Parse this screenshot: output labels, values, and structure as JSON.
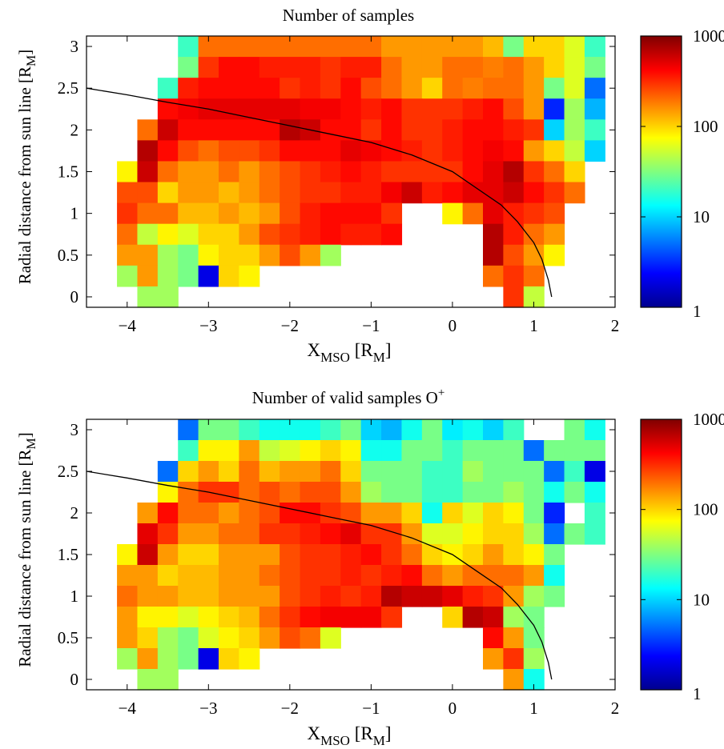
{
  "figure": {
    "panels": [
      {
        "title": "Number of samples"
      },
      {
        "title_main": "Number of valid samples O",
        "title_sup": "+"
      }
    ],
    "xlabel": {
      "main": "X",
      "sub": "MSO",
      "rest": " [R",
      "rest_sub": "M",
      "close": "]"
    },
    "ylabel": {
      "main": "Radial distance from sun line [R",
      "sub": "M",
      "close": "]"
    },
    "colorbar_ticks": [
      "1",
      "10",
      "100",
      "1000"
    ],
    "x_tick_labels": [
      "−4",
      "−3",
      "−2",
      "−1",
      "0",
      "1",
      "2"
    ],
    "y_tick_labels": [
      "0",
      "0.5",
      "1",
      "1.5",
      "2",
      "2.5",
      "3"
    ]
  },
  "chart_data": [
    {
      "type": "heatmap",
      "title": "Number of samples",
      "xlabel": "X_MSO [R_M]",
      "ylabel": "Radial distance from sun line [R_M]",
      "xlim": [
        -4.5,
        2
      ],
      "ylim": [
        -0.125,
        3.125
      ],
      "x_ticks": [
        -4,
        -3,
        -2,
        -1,
        0,
        1,
        2
      ],
      "y_ticks": [
        0,
        0.5,
        1,
        1.5,
        2,
        2.5,
        3
      ],
      "bin_width": 0.25,
      "bin_height": 0.25,
      "x_bin_start": -4,
      "y_bin_start": 0,
      "color_scale": "log",
      "colormap": "jet",
      "clim": [
        1,
        1000
      ],
      "colorbar_ticks": [
        1,
        10,
        100,
        1000
      ],
      "cells": [
        {
          "y": 3.0,
          "row": [
            null,
            null,
            null,
            20,
            200,
            200,
            200,
            200,
            200,
            200,
            200,
            200,
            200,
            150,
            150,
            150,
            150,
            150,
            120,
            30,
            100,
            100,
            60,
            20
          ]
        },
        {
          "y": 2.75,
          "row": [
            null,
            null,
            null,
            30,
            300,
            400,
            400,
            350,
            350,
            350,
            300,
            350,
            350,
            200,
            150,
            150,
            200,
            200,
            180,
            200,
            150,
            100,
            60,
            30
          ]
        },
        {
          "y": 2.5,
          "row": [
            null,
            null,
            20,
            350,
            400,
            400,
            400,
            400,
            300,
            350,
            300,
            400,
            250,
            200,
            150,
            100,
            200,
            180,
            200,
            200,
            150,
            30,
            60,
            5
          ]
        },
        {
          "y": 2.25,
          "row": [
            null,
            null,
            400,
            450,
            500,
            500,
            500,
            500,
            500,
            450,
            450,
            400,
            350,
            400,
            300,
            300,
            300,
            350,
            400,
            250,
            150,
            3,
            40,
            8
          ]
        },
        {
          "y": 2.0,
          "row": [
            null,
            200,
            600,
            400,
            400,
            400,
            400,
            400,
            700,
            600,
            400,
            400,
            300,
            400,
            300,
            300,
            350,
            400,
            400,
            350,
            300,
            10,
            40,
            20
          ]
        },
        {
          "y": 1.75,
          "row": [
            null,
            700,
            400,
            250,
            200,
            250,
            250,
            300,
            400,
            400,
            400,
            500,
            450,
            400,
            350,
            300,
            350,
            400,
            450,
            400,
            150,
            100,
            50,
            10
          ]
        },
        {
          "y": 1.5,
          "row": [
            80,
            600,
            200,
            150,
            150,
            200,
            150,
            200,
            250,
            300,
            350,
            400,
            350,
            300,
            300,
            300,
            300,
            400,
            500,
            700,
            300,
            200,
            100,
            null
          ]
        },
        {
          "y": 1.25,
          "row": [
            250,
            250,
            100,
            150,
            150,
            120,
            150,
            200,
            250,
            300,
            300,
            350,
            350,
            450,
            600,
            350,
            400,
            500,
            500,
            600,
            400,
            300,
            200,
            null
          ]
        },
        {
          "y": 1.0,
          "row": [
            300,
            200,
            200,
            120,
            120,
            150,
            120,
            150,
            250,
            350,
            400,
            400,
            400,
            300,
            null,
            null,
            80,
            200,
            500,
            350,
            300,
            250,
            null,
            null
          ]
        },
        {
          "y": 0.75,
          "row": [
            200,
            50,
            80,
            60,
            100,
            100,
            150,
            250,
            300,
            350,
            400,
            350,
            350,
            400,
            null,
            null,
            null,
            null,
            700,
            350,
            200,
            150,
            null,
            null
          ]
        },
        {
          "y": 0.5,
          "row": [
            150,
            150,
            40,
            30,
            80,
            100,
            100,
            150,
            250,
            150,
            40,
            null,
            null,
            null,
            null,
            null,
            null,
            null,
            700,
            250,
            150,
            80,
            null,
            null
          ]
        },
        {
          "y": 0.25,
          "row": [
            40,
            150,
            40,
            30,
            2,
            100,
            80,
            null,
            null,
            null,
            null,
            null,
            null,
            null,
            null,
            null,
            null,
            null,
            200,
            300,
            200,
            null,
            null,
            null
          ]
        },
        {
          "y": 0.0,
          "row": [
            null,
            40,
            40,
            null,
            null,
            null,
            null,
            null,
            null,
            null,
            null,
            null,
            null,
            null,
            null,
            null,
            null,
            null,
            null,
            300,
            50,
            null,
            null,
            null
          ]
        }
      ],
      "overlay_curve": {
        "name": "",
        "x": [
          -4.5,
          -4.0,
          -3.5,
          -3.0,
          -2.5,
          -2.0,
          -1.5,
          -1.0,
          -0.5,
          0.0,
          0.3,
          0.6,
          0.8,
          1.0,
          1.1,
          1.18,
          1.22
        ],
        "y": [
          2.5,
          2.42,
          2.33,
          2.25,
          2.15,
          2.05,
          1.95,
          1.85,
          1.7,
          1.5,
          1.3,
          1.1,
          0.9,
          0.65,
          0.45,
          0.2,
          0.0
        ]
      }
    },
    {
      "type": "heatmap",
      "title": "Number of valid samples O+",
      "xlabel": "X_MSO [R_M]",
      "ylabel": "Radial distance from sun line [R_M]",
      "xlim": [
        -4.5,
        2
      ],
      "ylim": [
        -0.125,
        3.125
      ],
      "x_ticks": [
        -4,
        -3,
        -2,
        -1,
        0,
        1,
        2
      ],
      "y_ticks": [
        0,
        0.5,
        1,
        1.5,
        2,
        2.5,
        3
      ],
      "bin_width": 0.25,
      "bin_height": 0.25,
      "x_bin_start": -4,
      "y_bin_start": 0,
      "color_scale": "log",
      "colormap": "jet",
      "clim": [
        1,
        1000
      ],
      "colorbar_ticks": [
        1,
        10,
        100,
        1000
      ],
      "cells": [
        {
          "y": 3.0,
          "row": [
            null,
            null,
            null,
            5,
            30,
            30,
            20,
            15,
            15,
            15,
            20,
            30,
            10,
            8,
            15,
            30,
            12,
            15,
            10,
            20,
            null,
            null,
            30,
            15
          ]
        },
        {
          "y": 2.75,
          "row": [
            null,
            null,
            null,
            20,
            80,
            80,
            150,
            50,
            60,
            80,
            100,
            80,
            15,
            15,
            30,
            30,
            20,
            30,
            30,
            30,
            5,
            30,
            30,
            30
          ]
        },
        {
          "y": 2.5,
          "row": [
            null,
            null,
            5,
            100,
            150,
            100,
            200,
            120,
            150,
            150,
            200,
            100,
            30,
            30,
            30,
            20,
            20,
            40,
            30,
            30,
            30,
            5,
            20,
            2
          ]
        },
        {
          "y": 2.25,
          "row": [
            null,
            null,
            80,
            200,
            300,
            300,
            200,
            250,
            200,
            250,
            250,
            150,
            40,
            30,
            30,
            20,
            20,
            30,
            30,
            40,
            30,
            15,
            30,
            15
          ]
        },
        {
          "y": 2.0,
          "row": [
            null,
            150,
            400,
            200,
            200,
            150,
            200,
            250,
            400,
            400,
            300,
            250,
            150,
            150,
            100,
            15,
            100,
            60,
            100,
            80,
            30,
            3,
            null,
            20
          ]
        },
        {
          "y": 1.75,
          "row": [
            null,
            500,
            300,
            150,
            150,
            200,
            200,
            300,
            300,
            350,
            400,
            500,
            300,
            300,
            150,
            60,
            60,
            80,
            100,
            100,
            40,
            5,
            30,
            20
          ]
        },
        {
          "y": 1.5,
          "row": [
            80,
            600,
            150,
            100,
            100,
            150,
            150,
            150,
            250,
            300,
            300,
            350,
            400,
            300,
            200,
            100,
            80,
            100,
            150,
            100,
            80,
            30,
            null,
            null
          ]
        },
        {
          "y": 1.25,
          "row": [
            150,
            150,
            100,
            120,
            120,
            150,
            150,
            200,
            250,
            300,
            300,
            350,
            300,
            350,
            400,
            200,
            150,
            200,
            200,
            200,
            150,
            15,
            null,
            null
          ]
        },
        {
          "y": 1.0,
          "row": [
            200,
            150,
            150,
            120,
            120,
            150,
            150,
            150,
            250,
            300,
            350,
            300,
            350,
            700,
            600,
            600,
            500,
            350,
            300,
            150,
            40,
            30,
            null,
            null
          ]
        },
        {
          "y": 0.75,
          "row": [
            150,
            80,
            80,
            60,
            80,
            100,
            120,
            200,
            300,
            400,
            450,
            450,
            450,
            300,
            null,
            null,
            100,
            700,
            600,
            40,
            30,
            null,
            null,
            null
          ]
        },
        {
          "y": 0.5,
          "row": [
            150,
            100,
            40,
            30,
            60,
            80,
            100,
            150,
            250,
            200,
            60,
            null,
            null,
            null,
            null,
            null,
            null,
            null,
            400,
            150,
            30,
            null,
            null,
            null
          ]
        },
        {
          "y": 0.25,
          "row": [
            40,
            150,
            40,
            30,
            2,
            100,
            80,
            null,
            null,
            null,
            null,
            null,
            null,
            null,
            null,
            null,
            null,
            null,
            150,
            300,
            40,
            null,
            null,
            null
          ]
        },
        {
          "y": 0.0,
          "row": [
            null,
            40,
            40,
            null,
            null,
            null,
            null,
            null,
            null,
            null,
            null,
            null,
            null,
            null,
            null,
            null,
            null,
            null,
            null,
            150,
            15,
            null,
            null,
            null
          ]
        }
      ],
      "overlay_curve": {
        "name": "",
        "x": [
          -4.5,
          -4.0,
          -3.5,
          -3.0,
          -2.5,
          -2.0,
          -1.5,
          -1.0,
          -0.5,
          0.0,
          0.3,
          0.6,
          0.8,
          1.0,
          1.1,
          1.18,
          1.22
        ],
        "y": [
          2.5,
          2.42,
          2.33,
          2.25,
          2.15,
          2.05,
          1.95,
          1.85,
          1.7,
          1.5,
          1.3,
          1.1,
          0.9,
          0.65,
          0.45,
          0.2,
          0.0
        ]
      }
    }
  ]
}
